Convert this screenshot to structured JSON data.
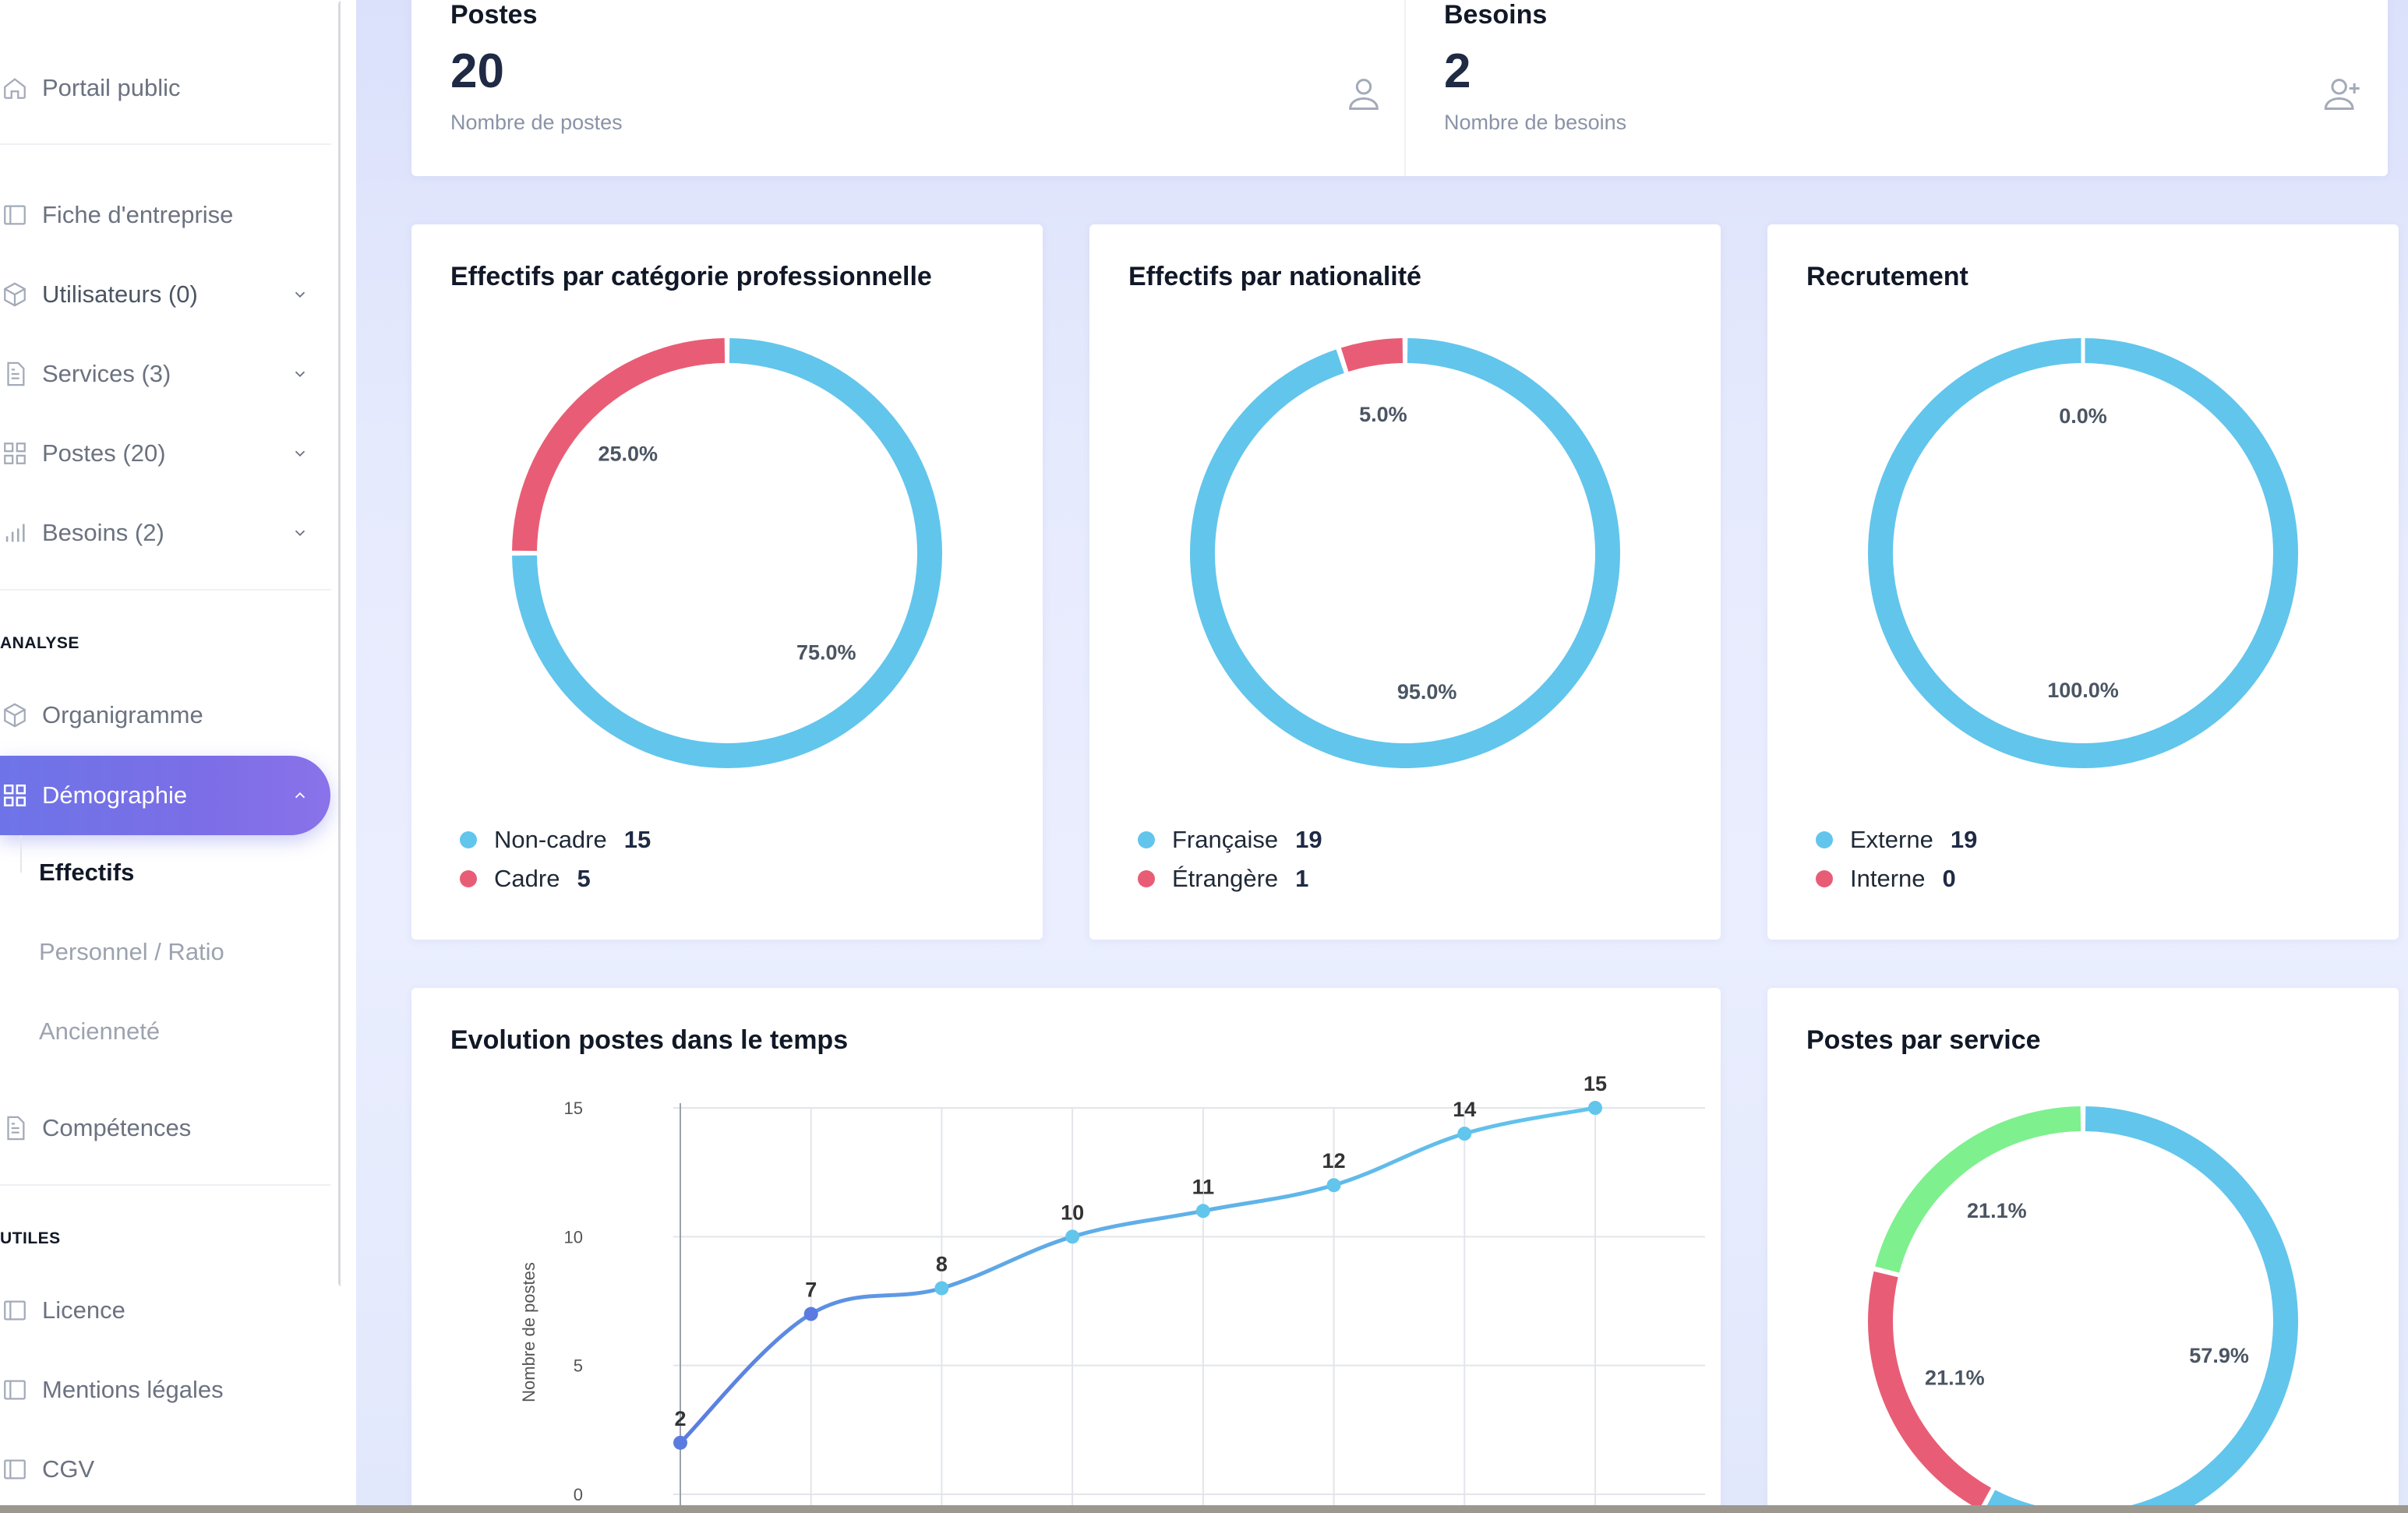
{
  "sidebar": {
    "items": [
      {
        "label": "Portail public",
        "icon": "home-icon"
      },
      {
        "label": "Fiche d'entreprise",
        "icon": "book-icon"
      },
      {
        "label": "Utilisateurs (0)",
        "icon": "cube-icon"
      },
      {
        "label": "Services (3)",
        "icon": "document-icon"
      },
      {
        "label": "Postes (20)",
        "icon": "grid-icon"
      },
      {
        "label": "Besoins (2)",
        "icon": "bar-chart-icon"
      },
      {
        "label": "Organigramme",
        "icon": "cube-icon"
      },
      {
        "label": "Compétences",
        "icon": "document-icon"
      },
      {
        "label": "Licence",
        "icon": "book-icon"
      },
      {
        "label": "Mentions légales",
        "icon": "book-icon"
      },
      {
        "label": "CGV",
        "icon": "book-icon"
      }
    ],
    "sections": {
      "analyse": "ANALYSE",
      "utiles": "UTILES"
    },
    "active": {
      "label": "Démographie",
      "icon": "grid-icon"
    },
    "subitems": [
      {
        "label": "Effectifs"
      },
      {
        "label": "Personnel / Ratio"
      },
      {
        "label": "Ancienneté"
      }
    ]
  },
  "stats": {
    "postes": {
      "title": "Postes",
      "value": "20",
      "sub": "Nombre de postes"
    },
    "besoins": {
      "title": "Besoins",
      "value": "2",
      "sub": "Nombre de besoins"
    }
  },
  "colors": {
    "blue": "#62c5ec",
    "red": "#e85d75",
    "green": "#7ef08e",
    "line_start": "#5b7be0",
    "accent": "#6e74e8"
  },
  "cards": {
    "categorie": {
      "title": "Effectifs par catégorie professionnelle",
      "legend": [
        {
          "label": "Non-cadre",
          "value": "15"
        },
        {
          "label": "Cadre",
          "value": "5"
        }
      ]
    },
    "nationalite": {
      "title": "Effectifs par nationalité",
      "legend": [
        {
          "label": "Française",
          "value": "19"
        },
        {
          "label": "Étrangère",
          "value": "1"
        }
      ]
    },
    "recrutement": {
      "title": "Recrutement",
      "legend": [
        {
          "label": "Externe",
          "value": "19"
        },
        {
          "label": "Interne",
          "value": "0"
        }
      ]
    },
    "evolution": {
      "title": "Evolution postes dans le temps"
    },
    "service": {
      "title": "Postes par service"
    }
  },
  "chart_data": [
    {
      "type": "pie",
      "title": "Effectifs par catégorie professionnelle",
      "categories": [
        "Non-cadre",
        "Cadre"
      ],
      "values": [
        15,
        5
      ],
      "labels": [
        "75.0%",
        "25.0%"
      ],
      "colors": [
        "#62c5ec",
        "#e85d75"
      ]
    },
    {
      "type": "pie",
      "title": "Effectifs par nationalité",
      "categories": [
        "Française",
        "Étrangère"
      ],
      "values": [
        19,
        1
      ],
      "labels": [
        "95.0%",
        "5.0%"
      ],
      "colors": [
        "#62c5ec",
        "#e85d75"
      ]
    },
    {
      "type": "pie",
      "title": "Recrutement",
      "categories": [
        "Externe",
        "Interne"
      ],
      "values": [
        19,
        0
      ],
      "labels": [
        "100.0%",
        "0.0%"
      ],
      "colors": [
        "#62c5ec",
        "#e85d75"
      ]
    },
    {
      "type": "line",
      "title": "Evolution postes dans le temps",
      "ylabel": "Nombre de postes",
      "ylim": [
        0,
        15
      ],
      "yticks": [
        "0",
        "5",
        "10",
        "15"
      ],
      "values": [
        2,
        7,
        8,
        10,
        11,
        12,
        14,
        15
      ],
      "labels": [
        "2",
        "7",
        "8",
        "10",
        "11",
        "12",
        "14",
        "15"
      ],
      "grid": true
    },
    {
      "type": "pie",
      "title": "Postes par service",
      "values": [
        57.9,
        21.1,
        21.1
      ],
      "labels": [
        "57.9%",
        "21.1%",
        "21.1%"
      ],
      "colors": [
        "#62c5ec",
        "#e85d75",
        "#7ef08e"
      ]
    }
  ]
}
